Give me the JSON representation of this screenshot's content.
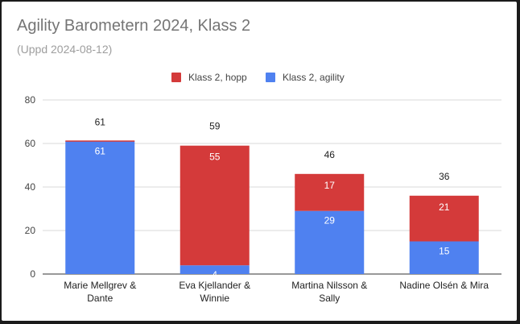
{
  "chart_data": {
    "type": "bar",
    "stacked": true,
    "title": "Agility Barometern 2024, Klass 2",
    "subtitle": "(Uppd 2024-08-12)",
    "categories": [
      [
        "Marie Mellgrev &",
        "Dante"
      ],
      [
        "Eva Kjellander &",
        "Winnie"
      ],
      [
        "Martina Nilsson &",
        "Sally"
      ],
      [
        "Nadine Olsén & Mira"
      ]
    ],
    "series": [
      {
        "name": "Klass 2, agility",
        "color": "#4f81f0",
        "values": [
          61,
          4,
          29,
          15
        ]
      },
      {
        "name": "Klass 2, hopp",
        "color": "#d43a3a",
        "values": [
          0,
          55,
          17,
          21
        ]
      }
    ],
    "totals": [
      61,
      59,
      46,
      36
    ],
    "legend": {
      "position": "top",
      "order": [
        "Klass 2, hopp",
        "Klass 2, agility"
      ]
    },
    "ylim": [
      0,
      80
    ],
    "yticks": [
      0,
      20,
      40,
      60,
      80
    ],
    "grid": true,
    "xlabel": "",
    "ylabel": ""
  }
}
